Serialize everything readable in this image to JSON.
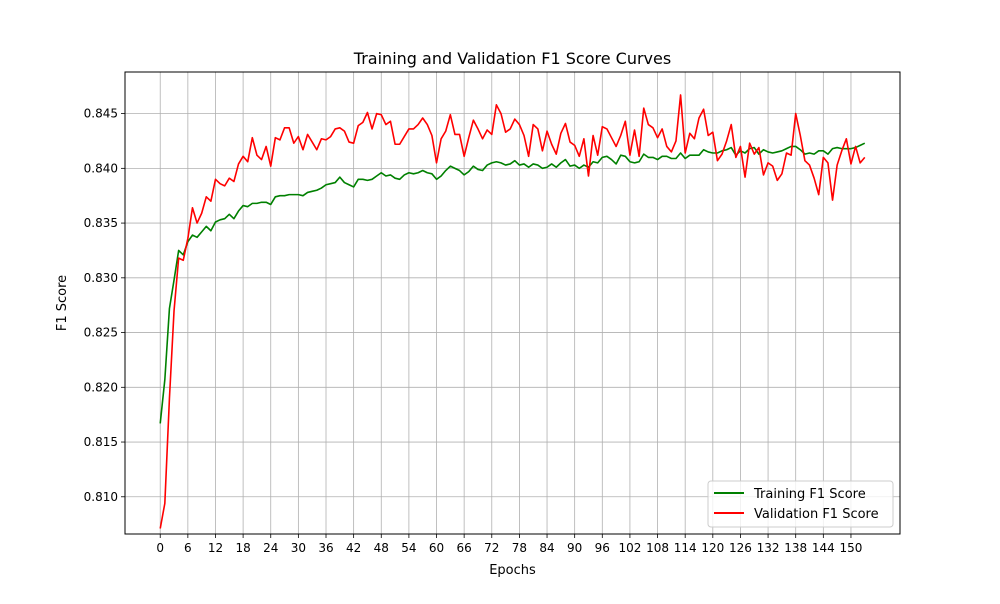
{
  "chart_data": {
    "type": "line",
    "title": "Training and Validation F1 Score Curves",
    "xlabel": "Epochs",
    "ylabel": "F1 Score",
    "xlim": [
      -7.65,
      160.65
    ],
    "ylim": [
      0.8066,
      0.8488
    ],
    "x_ticks": [
      0,
      6,
      12,
      18,
      24,
      30,
      36,
      42,
      48,
      54,
      60,
      66,
      72,
      78,
      84,
      90,
      96,
      102,
      108,
      114,
      120,
      126,
      132,
      138,
      144,
      150
    ],
    "y_ticks": [
      0.81,
      0.815,
      0.82,
      0.825,
      0.83,
      0.835,
      0.84,
      0.845
    ],
    "y_tick_labels": [
      "0.810",
      "0.815",
      "0.820",
      "0.825",
      "0.830",
      "0.835",
      "0.840",
      "0.845"
    ],
    "grid": true,
    "legend_position": "lower-right",
    "x_start": 0,
    "series": [
      {
        "name": "Training F1 Score",
        "color": "#008000",
        "values": [
          0.8167,
          0.8207,
          0.8272,
          0.8298,
          0.8325,
          0.8321,
          0.8333,
          0.8339,
          0.8337,
          0.8342,
          0.8347,
          0.8343,
          0.8351,
          0.8353,
          0.8354,
          0.8358,
          0.8354,
          0.8361,
          0.8366,
          0.8365,
          0.8368,
          0.8368,
          0.8369,
          0.8369,
          0.8367,
          0.8374,
          0.8375,
          0.8375,
          0.8376,
          0.8376,
          0.8376,
          0.8375,
          0.8378,
          0.8379,
          0.838,
          0.8382,
          0.8385,
          0.8386,
          0.8387,
          0.8392,
          0.8387,
          0.8385,
          0.8383,
          0.839,
          0.839,
          0.8389,
          0.839,
          0.8393,
          0.8396,
          0.8393,
          0.8394,
          0.8391,
          0.839,
          0.8394,
          0.8396,
          0.8395,
          0.8396,
          0.8398,
          0.8396,
          0.8395,
          0.839,
          0.8393,
          0.8398,
          0.8402,
          0.84,
          0.8398,
          0.8394,
          0.8397,
          0.8402,
          0.8399,
          0.8398,
          0.8403,
          0.8405,
          0.8406,
          0.8405,
          0.8403,
          0.8404,
          0.8407,
          0.8403,
          0.8404,
          0.8401,
          0.8404,
          0.8403,
          0.84,
          0.8401,
          0.8404,
          0.8401,
          0.8405,
          0.8408,
          0.8402,
          0.8403,
          0.84,
          0.8403,
          0.8401,
          0.8406,
          0.8405,
          0.841,
          0.8411,
          0.8408,
          0.8404,
          0.8412,
          0.8411,
          0.8406,
          0.8405,
          0.8406,
          0.8413,
          0.841,
          0.841,
          0.8408,
          0.8411,
          0.8411,
          0.8409,
          0.8409,
          0.8414,
          0.8409,
          0.8412,
          0.8412,
          0.8412,
          0.8417,
          0.8415,
          0.8414,
          0.8414,
          0.8416,
          0.8417,
          0.8419,
          0.8412,
          0.8416,
          0.8414,
          0.8418,
          0.8419,
          0.8413,
          0.8417,
          0.8415,
          0.8414,
          0.8415,
          0.8416,
          0.8418,
          0.842,
          0.842,
          0.8417,
          0.8413,
          0.8414,
          0.8413,
          0.8416,
          0.8416,
          0.8413,
          0.8418,
          0.8419,
          0.8418,
          0.8418,
          0.8418,
          0.8419,
          0.8421,
          0.8423
        ]
      },
      {
        "name": "Validation F1 Score",
        "color": "#ff0000",
        "values": [
          0.8071,
          0.8094,
          0.819,
          0.827,
          0.8318,
          0.8316,
          0.8336,
          0.8364,
          0.835,
          0.8359,
          0.8374,
          0.837,
          0.839,
          0.8386,
          0.8384,
          0.8391,
          0.8388,
          0.8404,
          0.8411,
          0.8406,
          0.8428,
          0.8412,
          0.8408,
          0.842,
          0.8402,
          0.8428,
          0.8426,
          0.8437,
          0.8437,
          0.8423,
          0.8429,
          0.8417,
          0.8431,
          0.8424,
          0.8417,
          0.8427,
          0.8426,
          0.8429,
          0.8436,
          0.8437,
          0.8434,
          0.8424,
          0.8423,
          0.8439,
          0.8442,
          0.8451,
          0.8436,
          0.845,
          0.8449,
          0.844,
          0.8443,
          0.8422,
          0.8422,
          0.8429,
          0.8436,
          0.8436,
          0.844,
          0.8446,
          0.844,
          0.843,
          0.8405,
          0.8427,
          0.8434,
          0.8449,
          0.8431,
          0.8431,
          0.8411,
          0.8428,
          0.8444,
          0.8436,
          0.8427,
          0.8435,
          0.8431,
          0.8458,
          0.845,
          0.8433,
          0.8436,
          0.8445,
          0.844,
          0.843,
          0.8411,
          0.844,
          0.8436,
          0.8416,
          0.8434,
          0.8422,
          0.8413,
          0.8432,
          0.8441,
          0.8424,
          0.8421,
          0.8411,
          0.8427,
          0.8393,
          0.843,
          0.8412,
          0.8438,
          0.8436,
          0.8428,
          0.842,
          0.843,
          0.8443,
          0.8412,
          0.8435,
          0.8411,
          0.8455,
          0.844,
          0.8437,
          0.8428,
          0.8436,
          0.842,
          0.8415,
          0.8425,
          0.8467,
          0.8414,
          0.8432,
          0.8427,
          0.8446,
          0.8454,
          0.843,
          0.8433,
          0.8407,
          0.8413,
          0.8425,
          0.844,
          0.841,
          0.842,
          0.8392,
          0.8423,
          0.8413,
          0.8419,
          0.8394,
          0.8405,
          0.8402,
          0.8389,
          0.8395,
          0.8414,
          0.8412,
          0.845,
          0.843,
          0.8407,
          0.8403,
          0.8391,
          0.8376,
          0.841,
          0.8405,
          0.8371,
          0.8403,
          0.8416,
          0.8427,
          0.8404,
          0.842,
          0.8405,
          0.841
        ]
      }
    ]
  }
}
